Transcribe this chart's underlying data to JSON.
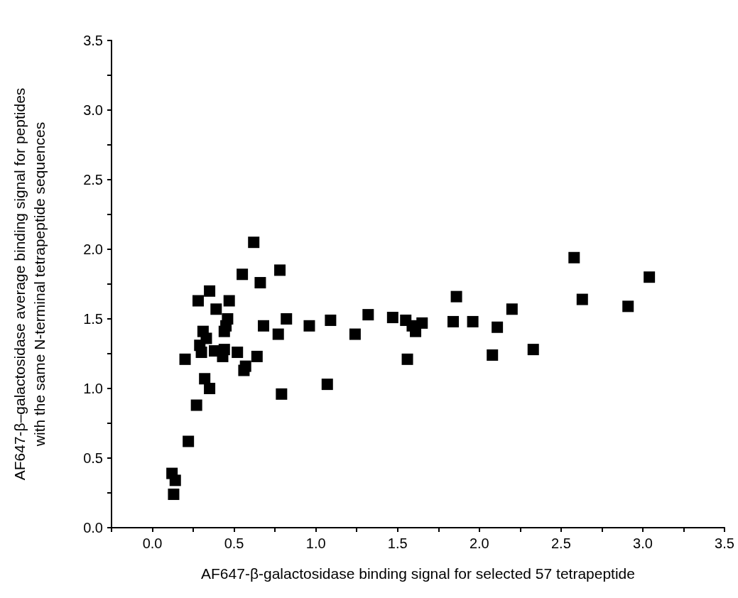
{
  "chart_data": {
    "type": "scatter",
    "xlabel": "AF647-β-galactosidase binding signal for selected 57 tetrapeptide",
    "ylabel": "AF647-β–galactosidase average binding signal for peptides\nwith the same N-terminal tetrapeptide sequences",
    "x": [
      0.12,
      0.14,
      0.13,
      0.22,
      0.2,
      0.27,
      0.28,
      0.29,
      0.3,
      0.31,
      0.32,
      0.33,
      0.35,
      0.35,
      0.38,
      0.39,
      0.43,
      0.44,
      0.44,
      0.45,
      0.46,
      0.47,
      0.52,
      0.55,
      0.56,
      0.57,
      0.62,
      0.64,
      0.66,
      0.68,
      0.77,
      0.78,
      0.79,
      0.82,
      0.96,
      1.07,
      1.09,
      1.24,
      1.32,
      1.47,
      1.55,
      1.56,
      1.59,
      1.61,
      1.65,
      1.84,
      1.86,
      1.96,
      2.08,
      2.11,
      2.2,
      2.33,
      2.58,
      2.63,
      2.91,
      3.04
    ],
    "values": [
      0.39,
      0.34,
      0.24,
      0.62,
      1.21,
      0.88,
      1.63,
      1.31,
      1.26,
      1.41,
      1.07,
      1.36,
      1.0,
      1.7,
      1.27,
      1.57,
      1.23,
      1.28,
      1.41,
      1.45,
      1.5,
      1.63,
      1.26,
      1.82,
      1.13,
      1.16,
      2.05,
      1.23,
      1.76,
      1.45,
      1.39,
      1.85,
      0.96,
      1.5,
      1.45,
      1.03,
      1.49,
      1.39,
      1.53,
      1.51,
      1.49,
      1.21,
      1.45,
      1.41,
      1.47,
      1.48,
      1.66,
      1.48,
      1.24,
      1.44,
      1.57,
      1.28,
      1.94,
      1.64,
      1.59,
      1.8
    ],
    "color": "#000000",
    "marker": "square",
    "xlim": [
      -0.25,
      3.5
    ],
    "xticks": [
      {
        "value": -0.25,
        "label": null
      },
      {
        "value": 0,
        "label": "0.0"
      },
      {
        "value": 0.25,
        "label": null
      },
      0.5,
      {
        "value": 0.75,
        "label": null
      },
      {
        "value": 1,
        "label": "1.0"
      },
      {
        "value": 1.25,
        "label": null
      },
      1.5,
      {
        "value": 1.75,
        "label": null
      },
      {
        "value": 2,
        "label": "2.0"
      },
      {
        "value": 2.25,
        "label": null
      },
      2.5,
      {
        "value": 2.75,
        "label": null
      },
      {
        "value": 3,
        "label": "3.0"
      },
      {
        "value": 3.25,
        "label": null
      },
      3.5
    ],
    "ylim": [
      0,
      3.5
    ],
    "yticks": [
      {
        "value": 0,
        "label": "0.0"
      },
      {
        "value": 0.25,
        "label": null
      },
      0.5,
      {
        "value": 0.75,
        "label": null
      },
      {
        "value": 1,
        "label": "1.0"
      },
      {
        "value": 1.25,
        "label": null
      },
      1.5,
      {
        "value": 1.75,
        "label": null
      },
      {
        "value": 2,
        "label": "2.0"
      },
      {
        "value": 2.25,
        "label": null
      },
      2.5,
      {
        "value": 2.75,
        "label": null
      },
      {
        "value": 3,
        "label": "3.0"
      },
      {
        "value": 3.25,
        "label": null
      },
      3.5
    ],
    "grid": false
  }
}
